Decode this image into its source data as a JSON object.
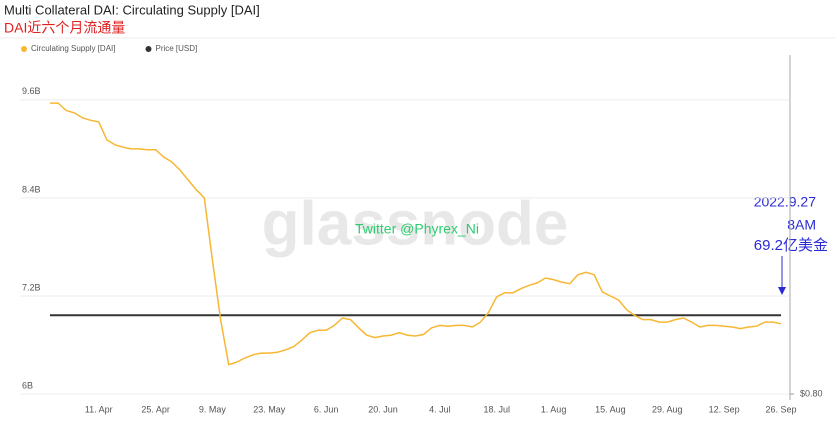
{
  "chart_data": {
    "type": "line",
    "title": "Multi Collateral DAI: Circulating Supply [DAI]",
    "subtitle": "DAI近六个月流通量",
    "watermark": "glassnode",
    "annotations": [
      "Twitter @Phyrex_Ni",
      "2022.9.27",
      "8AM",
      "69.2亿美金"
    ],
    "categories": [
      null,
      null,
      null,
      null,
      null,
      null,
      "11. Apr",
      null,
      null,
      null,
      null,
      null,
      null,
      "25. Apr",
      null,
      null,
      null,
      null,
      null,
      null,
      "9. May",
      null,
      null,
      null,
      null,
      null,
      null,
      "23. May",
      null,
      null,
      null,
      null,
      null,
      null,
      "6. Jun",
      null,
      null,
      null,
      null,
      null,
      null,
      "20. Jun",
      null,
      null,
      null,
      null,
      null,
      null,
      "4. Jul",
      null,
      null,
      null,
      null,
      null,
      null,
      "18. Jul",
      null,
      null,
      null,
      null,
      null,
      null,
      "1. Aug",
      null,
      null,
      null,
      null,
      null,
      null,
      "15. Aug",
      null,
      null,
      null,
      null,
      null,
      null,
      "29. Aug",
      null,
      null,
      null,
      null,
      null,
      null,
      "12. Sep",
      null,
      null,
      null,
      null,
      null,
      null,
      "26. Sep"
    ],
    "series": [
      {
        "name": "Circulating Supply [DAI]",
        "color": "#f7b733",
        "values": [
          9.56,
          9.56,
          9.47,
          9.44,
          9.38,
          9.35,
          9.33,
          9.11,
          9.05,
          9.02,
          9.0,
          9.0,
          8.99,
          8.99,
          8.9,
          8.84,
          8.74,
          8.62,
          8.5,
          8.4,
          7.64,
          6.91,
          6.36,
          6.39,
          6.44,
          6.48,
          6.5,
          6.5,
          6.51,
          6.54,
          6.58,
          6.66,
          6.75,
          6.78,
          6.78,
          6.84,
          6.93,
          6.91,
          6.81,
          6.72,
          6.69,
          6.71,
          6.72,
          6.75,
          6.72,
          6.71,
          6.73,
          6.81,
          6.84,
          6.83,
          6.84,
          6.84,
          6.82,
          6.88,
          7.0,
          7.19,
          7.24,
          7.24,
          7.29,
          7.33,
          7.36,
          7.42,
          7.4,
          7.37,
          7.35,
          7.46,
          7.49,
          7.46,
          7.25,
          7.2,
          7.15,
          7.03,
          6.96,
          6.91,
          6.91,
          6.88,
          6.88,
          6.91,
          6.93,
          6.88,
          6.82,
          6.84,
          6.84,
          6.83,
          6.82,
          6.8,
          6.82,
          6.83,
          6.88,
          6.88,
          6.86
        ]
      },
      {
        "name": "Price [USD]",
        "color": "#333333",
        "axis": "y2",
        "values": [
          1,
          1,
          1,
          1,
          1,
          1,
          1,
          1,
          1,
          1,
          1,
          1,
          1,
          1,
          1,
          1,
          1,
          1,
          1,
          1,
          1,
          1,
          1,
          1,
          1,
          1,
          1,
          1,
          1,
          1,
          1,
          1,
          1,
          1,
          1,
          1,
          1,
          1,
          1,
          1,
          1,
          1,
          1,
          1,
          1,
          1,
          1,
          1,
          1,
          1,
          1,
          1,
          1,
          1,
          1,
          1,
          1,
          1,
          1,
          1,
          1,
          1,
          1,
          1,
          1,
          1,
          1,
          1,
          1,
          1,
          1,
          1,
          1,
          1,
          1,
          1,
          1,
          1,
          1,
          1,
          1,
          1,
          1,
          1,
          1,
          1,
          1,
          1,
          1,
          1,
          1
        ]
      }
    ],
    "ylim": [
      6,
      10.1
    ],
    "yticks": [
      {
        "value": 6,
        "label": "6B"
      },
      {
        "value": 7.2,
        "label": "7.2B"
      },
      {
        "value": 8.4,
        "label": "8.4B"
      },
      {
        "value": 9.6,
        "label": "9.6B"
      }
    ],
    "y2lim": [
      0.8,
      1.65
    ],
    "y2ticks": [
      {
        "value": 0.8,
        "label": "$0.80"
      }
    ],
    "grid": true
  }
}
